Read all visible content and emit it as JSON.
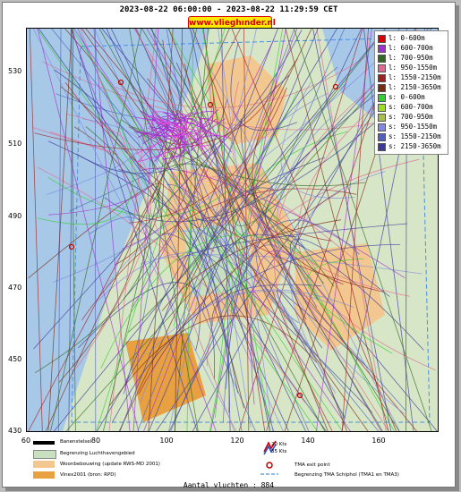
{
  "title": "2023-08-22 06:00:00 - 2023-08-22 11:29:59 CET",
  "brand": "www.vlieghınder.nl",
  "y_ticks": [
    "530",
    "510",
    "490",
    "470",
    "450",
    "430"
  ],
  "x_ticks": [
    "60",
    "80",
    "100",
    "120",
    "140",
    "160"
  ],
  "legend": [
    {
      "label": "l: 0-600m",
      "color": "#e00000"
    },
    {
      "label": "l: 600-700m",
      "color": "#a030d0"
    },
    {
      "label": "l: 700-950m",
      "color": "#306a20"
    },
    {
      "label": "l: 950-1550m",
      "color": "#e06890"
    },
    {
      "label": "l: 1550-2150m",
      "color": "#a02020"
    },
    {
      "label": "l: 2150-3650m",
      "color": "#7a2c10"
    },
    {
      "label": "s: 0-600m",
      "color": "#30d030"
    },
    {
      "label": "s: 600-700m",
      "color": "#9be020"
    },
    {
      "label": "s: 700-950m",
      "color": "#a8c048"
    },
    {
      "label": "s: 950-1550m",
      "color": "#8088e0"
    },
    {
      "label": "s: 1550-2150m",
      "color": "#5060c0"
    },
    {
      "label": "s: 2150-3650m",
      "color": "#3a3a9a"
    }
  ],
  "bottom_legend": {
    "runway": "Banenstelsel",
    "airport": "Begrenzing Luchthavengebied",
    "housing": "Woonbebouwing (update RWS-MD 2001)",
    "vinex": "Vinex2001 (bron: RPD)",
    "wind20": "20 Kts",
    "wind35": "35 Kts",
    "tma_exit": "TMA exit point",
    "tma_border": "Begrenzing TMA Schiphol  (TMA1 en TMA3)"
  },
  "colors": {
    "housing": "#f2c890",
    "vinex": "#e8a040",
    "airport": "#c8e0c0",
    "water": "#a8c8e8",
    "land": "#d6e6c6"
  },
  "count": "Aantal vluchten : 884"
}
